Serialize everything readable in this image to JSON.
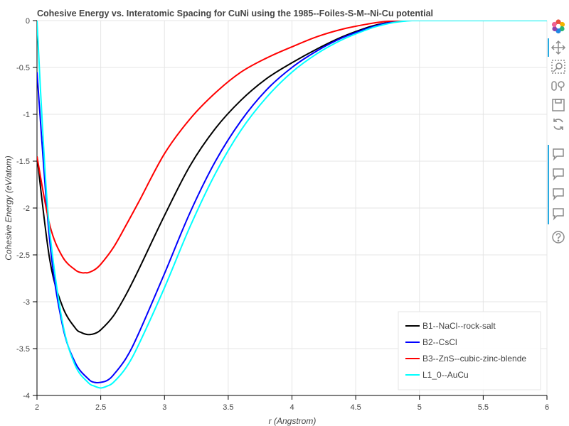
{
  "chart_data": {
    "type": "line",
    "title": "Cohesive Energy vs. Interatomic Spacing for CuNi using the 1985--Foiles-S-M--Ni-Cu potential",
    "xlabel": "r (Angstrom)",
    "ylabel": "Cohesive Energy (eV/atom)",
    "xlim": [
      2,
      6
    ],
    "ylim": [
      -4,
      0
    ],
    "x_ticks": [
      "2",
      "2.5",
      "3",
      "3.5",
      "4",
      "4.5",
      "5",
      "5.5",
      "6"
    ],
    "y_ticks": [
      "0",
      "-0.5",
      "-1",
      "-1.5",
      "-2",
      "-2.5",
      "-3",
      "-3.5",
      "-4"
    ],
    "grid": true,
    "legend_position": "bottom-right",
    "series": [
      {
        "name": "B1--NaCl--rock-salt",
        "color": "#000000",
        "x": [
          2.0,
          2.1,
          2.2,
          2.3,
          2.35,
          2.4,
          2.45,
          2.5,
          2.6,
          2.7,
          2.8,
          3.0,
          3.2,
          3.4,
          3.6,
          3.8,
          4.0,
          4.2,
          4.4,
          4.6,
          4.7,
          4.8,
          4.85,
          4.9
        ],
        "y": [
          -1.45,
          -2.55,
          -3.05,
          -3.28,
          -3.33,
          -3.35,
          -3.34,
          -3.3,
          -3.15,
          -2.92,
          -2.65,
          -2.08,
          -1.55,
          -1.15,
          -0.85,
          -0.62,
          -0.45,
          -0.3,
          -0.17,
          -0.07,
          -0.035,
          -0.01,
          -0.002,
          0.0
        ]
      },
      {
        "name": "B2--CsCl",
        "color": "#0000ff",
        "x": [
          2.0,
          2.1,
          2.2,
          2.3,
          2.4,
          2.45,
          2.5,
          2.55,
          2.6,
          2.7,
          2.8,
          3.0,
          3.2,
          3.4,
          3.6,
          3.8,
          4.0,
          4.2,
          4.4,
          4.6,
          4.7,
          4.8,
          4.85,
          4.9
        ],
        "y": [
          -0.55,
          -2.35,
          -3.25,
          -3.65,
          -3.82,
          -3.86,
          -3.86,
          -3.84,
          -3.78,
          -3.6,
          -3.33,
          -2.7,
          -2.05,
          -1.5,
          -1.07,
          -0.74,
          -0.5,
          -0.32,
          -0.18,
          -0.08,
          -0.04,
          -0.012,
          -0.003,
          0.0
        ]
      },
      {
        "name": "B3--ZnS--cubic-zinc-blende",
        "color": "#ff0000",
        "x": [
          2.0,
          2.1,
          2.2,
          2.3,
          2.35,
          2.38,
          2.4,
          2.45,
          2.5,
          2.6,
          2.7,
          2.8,
          3.0,
          3.2,
          3.4,
          3.6,
          3.8,
          4.0,
          4.2,
          4.4,
          4.6,
          4.7,
          4.8,
          4.85
        ],
        "y": [
          -1.45,
          -2.18,
          -2.52,
          -2.66,
          -2.69,
          -2.69,
          -2.69,
          -2.66,
          -2.6,
          -2.42,
          -2.18,
          -1.93,
          -1.42,
          -1.05,
          -0.77,
          -0.55,
          -0.4,
          -0.28,
          -0.17,
          -0.09,
          -0.035,
          -0.015,
          -0.003,
          0.0
        ]
      },
      {
        "name": "L1_0--AuCu",
        "color": "#00ffff",
        "x": [
          2.0,
          2.05,
          2.1,
          2.2,
          2.3,
          2.4,
          2.45,
          2.5,
          2.55,
          2.6,
          2.7,
          2.8,
          3.0,
          3.2,
          3.4,
          3.6,
          3.8,
          4.0,
          4.2,
          4.4,
          4.6,
          4.7,
          4.8,
          4.9,
          4.95
        ],
        "y": [
          0.0,
          -1.3,
          -2.25,
          -3.22,
          -3.68,
          -3.86,
          -3.9,
          -3.92,
          -3.9,
          -3.86,
          -3.7,
          -3.45,
          -2.85,
          -2.2,
          -1.63,
          -1.17,
          -0.82,
          -0.55,
          -0.35,
          -0.2,
          -0.09,
          -0.05,
          -0.02,
          -0.004,
          0.0
        ]
      }
    ]
  },
  "toolbar": {
    "tools": [
      "bokeh-logo-icon",
      "pan-icon",
      "box-zoom-icon",
      "wheel-zoom-icon",
      "save-icon",
      "reset-icon",
      "hover-icon",
      "hover-icon",
      "hover-icon",
      "hover-icon",
      "help-icon"
    ]
  }
}
